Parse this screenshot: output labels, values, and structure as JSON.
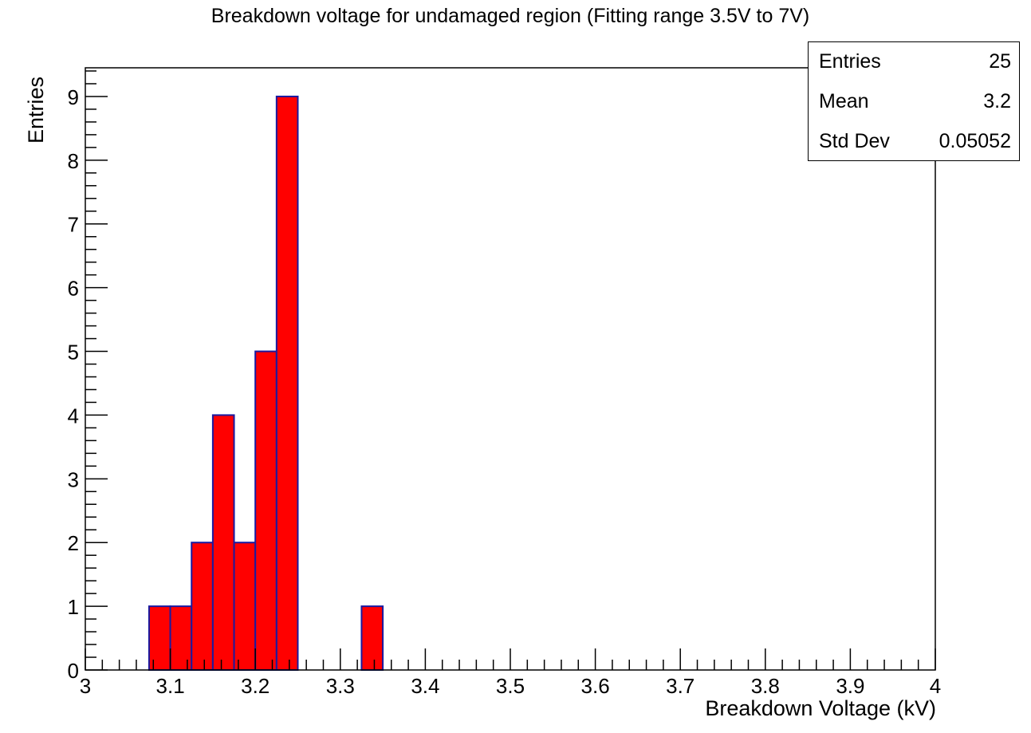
{
  "chart_data": {
    "type": "bar",
    "title": "Breakdown voltage for undamaged region (Fitting range 3.5V to 7V)",
    "xlabel": "Breakdown Voltage (kV)",
    "ylabel": "Entries",
    "xlim": [
      3.0,
      4.0
    ],
    "ylim": [
      0,
      9.45
    ],
    "bin_width": 0.025,
    "x_ticks": [
      "3",
      "3.1",
      "3.2",
      "3.3",
      "3.4",
      "3.5",
      "3.6",
      "3.7",
      "3.8",
      "3.9",
      "4"
    ],
    "y_ticks": [
      "0",
      "1",
      "2",
      "3",
      "4",
      "5",
      "6",
      "7",
      "8",
      "9"
    ],
    "bins": [
      {
        "low": 3.075,
        "high": 3.1,
        "count": 1
      },
      {
        "low": 3.1,
        "high": 3.125,
        "count": 1
      },
      {
        "low": 3.125,
        "high": 3.15,
        "count": 2
      },
      {
        "low": 3.15,
        "high": 3.175,
        "count": 4
      },
      {
        "low": 3.175,
        "high": 3.2,
        "count": 2
      },
      {
        "low": 3.2,
        "high": 3.225,
        "count": 5
      },
      {
        "low": 3.225,
        "high": 3.25,
        "count": 9
      },
      {
        "low": 3.325,
        "high": 3.35,
        "count": 1
      }
    ],
    "fill_color": "#ff0000",
    "line_color": "#1a1aa0",
    "grid": false,
    "legend": "none"
  },
  "stats_box": {
    "rows": [
      {
        "label": "Entries",
        "value": "25"
      },
      {
        "label": "Mean",
        "value": "3.2"
      },
      {
        "label": "Std Dev",
        "value": "0.05052"
      }
    ]
  }
}
